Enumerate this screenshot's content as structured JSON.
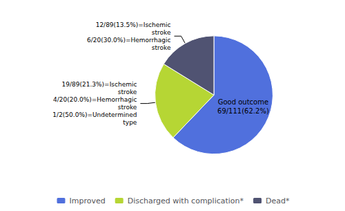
{
  "chart_data": {
    "type": "pie",
    "categories": [
      "Improved",
      "Discharged with complication*",
      "Dead*"
    ],
    "values": [
      69,
      24,
      18
    ],
    "annotations": [
      "Good outcome\n69/111(62.2%)",
      "19/89(21.3%)=Ischemic\nstroke\n4/20(20.0%)=Hemorrhagic\nstroke\n1/2(50.0%)=Undetermined\ntype",
      "12/89(13.5%)=Ischemic\nstroke\n6/20(30.0%)=Hemorrhagic\nstroke"
    ],
    "legend": "bottom"
  }
}
